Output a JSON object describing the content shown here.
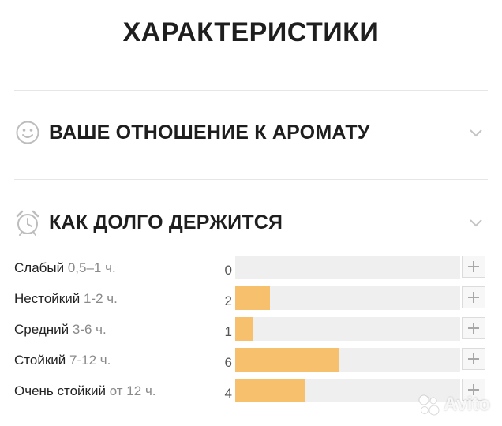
{
  "page": {
    "title": "ХАРАКТЕРИСТИКИ"
  },
  "sections": {
    "attitude": {
      "label": "ВАШЕ ОТНОШЕНИЕ К АРОМАТУ",
      "icon": "smiley-icon"
    },
    "longevity": {
      "label": "КАК ДОЛГО ДЕРЖИТСЯ",
      "icon": "alarm-clock-icon"
    }
  },
  "longevity_rows": [
    {
      "name": "Слабый",
      "duration": "0,5–1 ч.",
      "count": "0",
      "value": 0
    },
    {
      "name": "Нестойкий",
      "duration": "1-2 ч.",
      "count": "2",
      "value": 2
    },
    {
      "name": "Средний",
      "duration": "3-6 ч.",
      "count": "1",
      "value": 1
    },
    {
      "name": "Стойкий",
      "duration": "7-12 ч.",
      "count": "6",
      "value": 6
    },
    {
      "name": "Очень стойкий",
      "duration": "от 12 ч.",
      "count": "4",
      "value": 4
    }
  ],
  "scale_max": 13,
  "colors": {
    "bar_fill": "#f6c06c",
    "bar_track": "#efefef",
    "icon": "#bdbdbd"
  },
  "watermark": {
    "text": "Avito"
  }
}
